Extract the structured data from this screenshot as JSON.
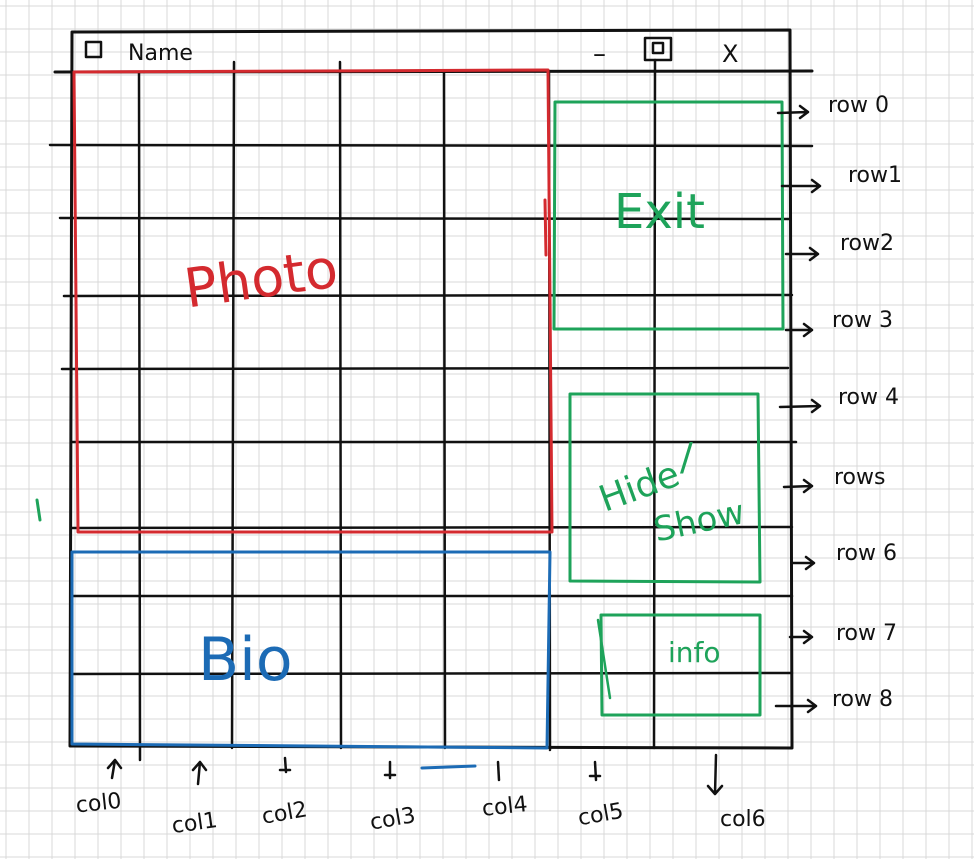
{
  "window": {
    "title": "Name",
    "minimize_glyph": "–",
    "close_glyph": "X"
  },
  "regions": {
    "photo": {
      "label": "Photo",
      "color": "#d42a2f"
    },
    "bio": {
      "label": "Bio",
      "color": "#1c6bb5"
    },
    "exit": {
      "label": "Exit",
      "color": "#1ea35a"
    },
    "hide_show": {
      "label_line1": "Hide",
      "label_sep": "/",
      "label_line2": "Show",
      "color": "#1ea35a"
    },
    "info": {
      "label": "info",
      "color": "#1ea35a"
    }
  },
  "rows": [
    "row 0",
    "row1",
    "row2",
    "row 3",
    "row 4",
    "rows",
    "row 6",
    "row 7",
    "row 8"
  ],
  "cols": [
    "col0",
    "col1",
    "col2",
    "col3",
    "col4",
    "col5",
    "col6"
  ],
  "colors": {
    "ink": "#111111",
    "paper_grid": "#d9d9d9"
  }
}
